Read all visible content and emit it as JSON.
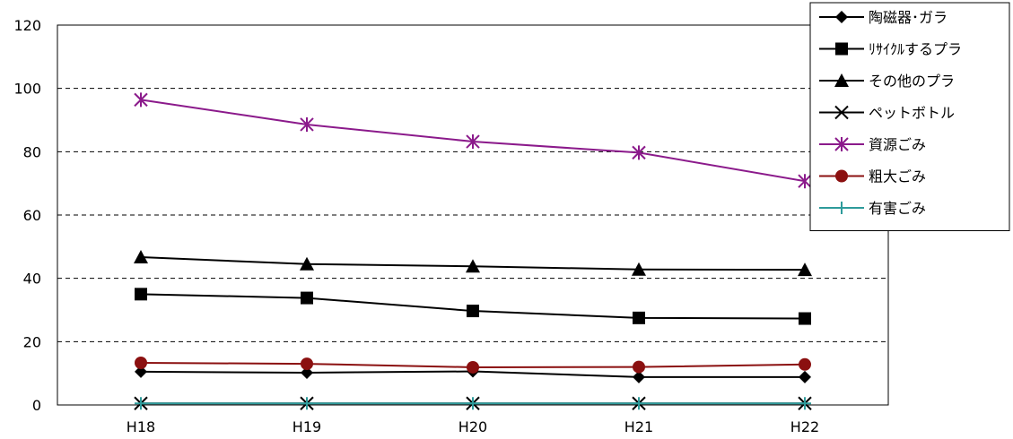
{
  "chart_data": {
    "type": "line",
    "categories": [
      "H18",
      "H19",
      "H20",
      "H21",
      "H22"
    ],
    "ylim": [
      0,
      120
    ],
    "yticks": [
      0,
      20,
      40,
      60,
      80,
      100,
      120
    ],
    "grid": true,
    "legend_position": "top-right",
    "series": [
      {
        "name": "陶磁器･ガラ",
        "values": [
          10.5,
          10.2,
          10.6,
          8.8,
          8.8
        ],
        "color": "#000000",
        "marker": "diamond"
      },
      {
        "name": "ﾘｻｲｸﾙするプラ",
        "values": [
          35.0,
          33.8,
          29.7,
          27.5,
          27.3
        ],
        "color": "#000000",
        "marker": "square"
      },
      {
        "name": "その他のプラ",
        "values": [
          46.7,
          44.5,
          43.8,
          42.8,
          42.7
        ],
        "color": "#000000",
        "marker": "triangle"
      },
      {
        "name": "ペットボトル",
        "values": [
          0.5,
          0.5,
          0.5,
          0.5,
          0.5
        ],
        "color": "#000000",
        "marker": "x"
      },
      {
        "name": "資源ごみ",
        "values": [
          96.4,
          88.6,
          83.2,
          79.7,
          70.7
        ],
        "color": "#8B1A8B",
        "marker": "asterisk"
      },
      {
        "name": "粗大ごみ",
        "values": [
          13.3,
          13.0,
          11.9,
          12.0,
          12.8
        ],
        "color": "#8B1010",
        "marker": "circle"
      },
      {
        "name": "有害ごみ",
        "values": [
          0.5,
          0.5,
          0.5,
          0.5,
          0.5
        ],
        "color": "#2E9B9B",
        "marker": "plus"
      }
    ]
  }
}
